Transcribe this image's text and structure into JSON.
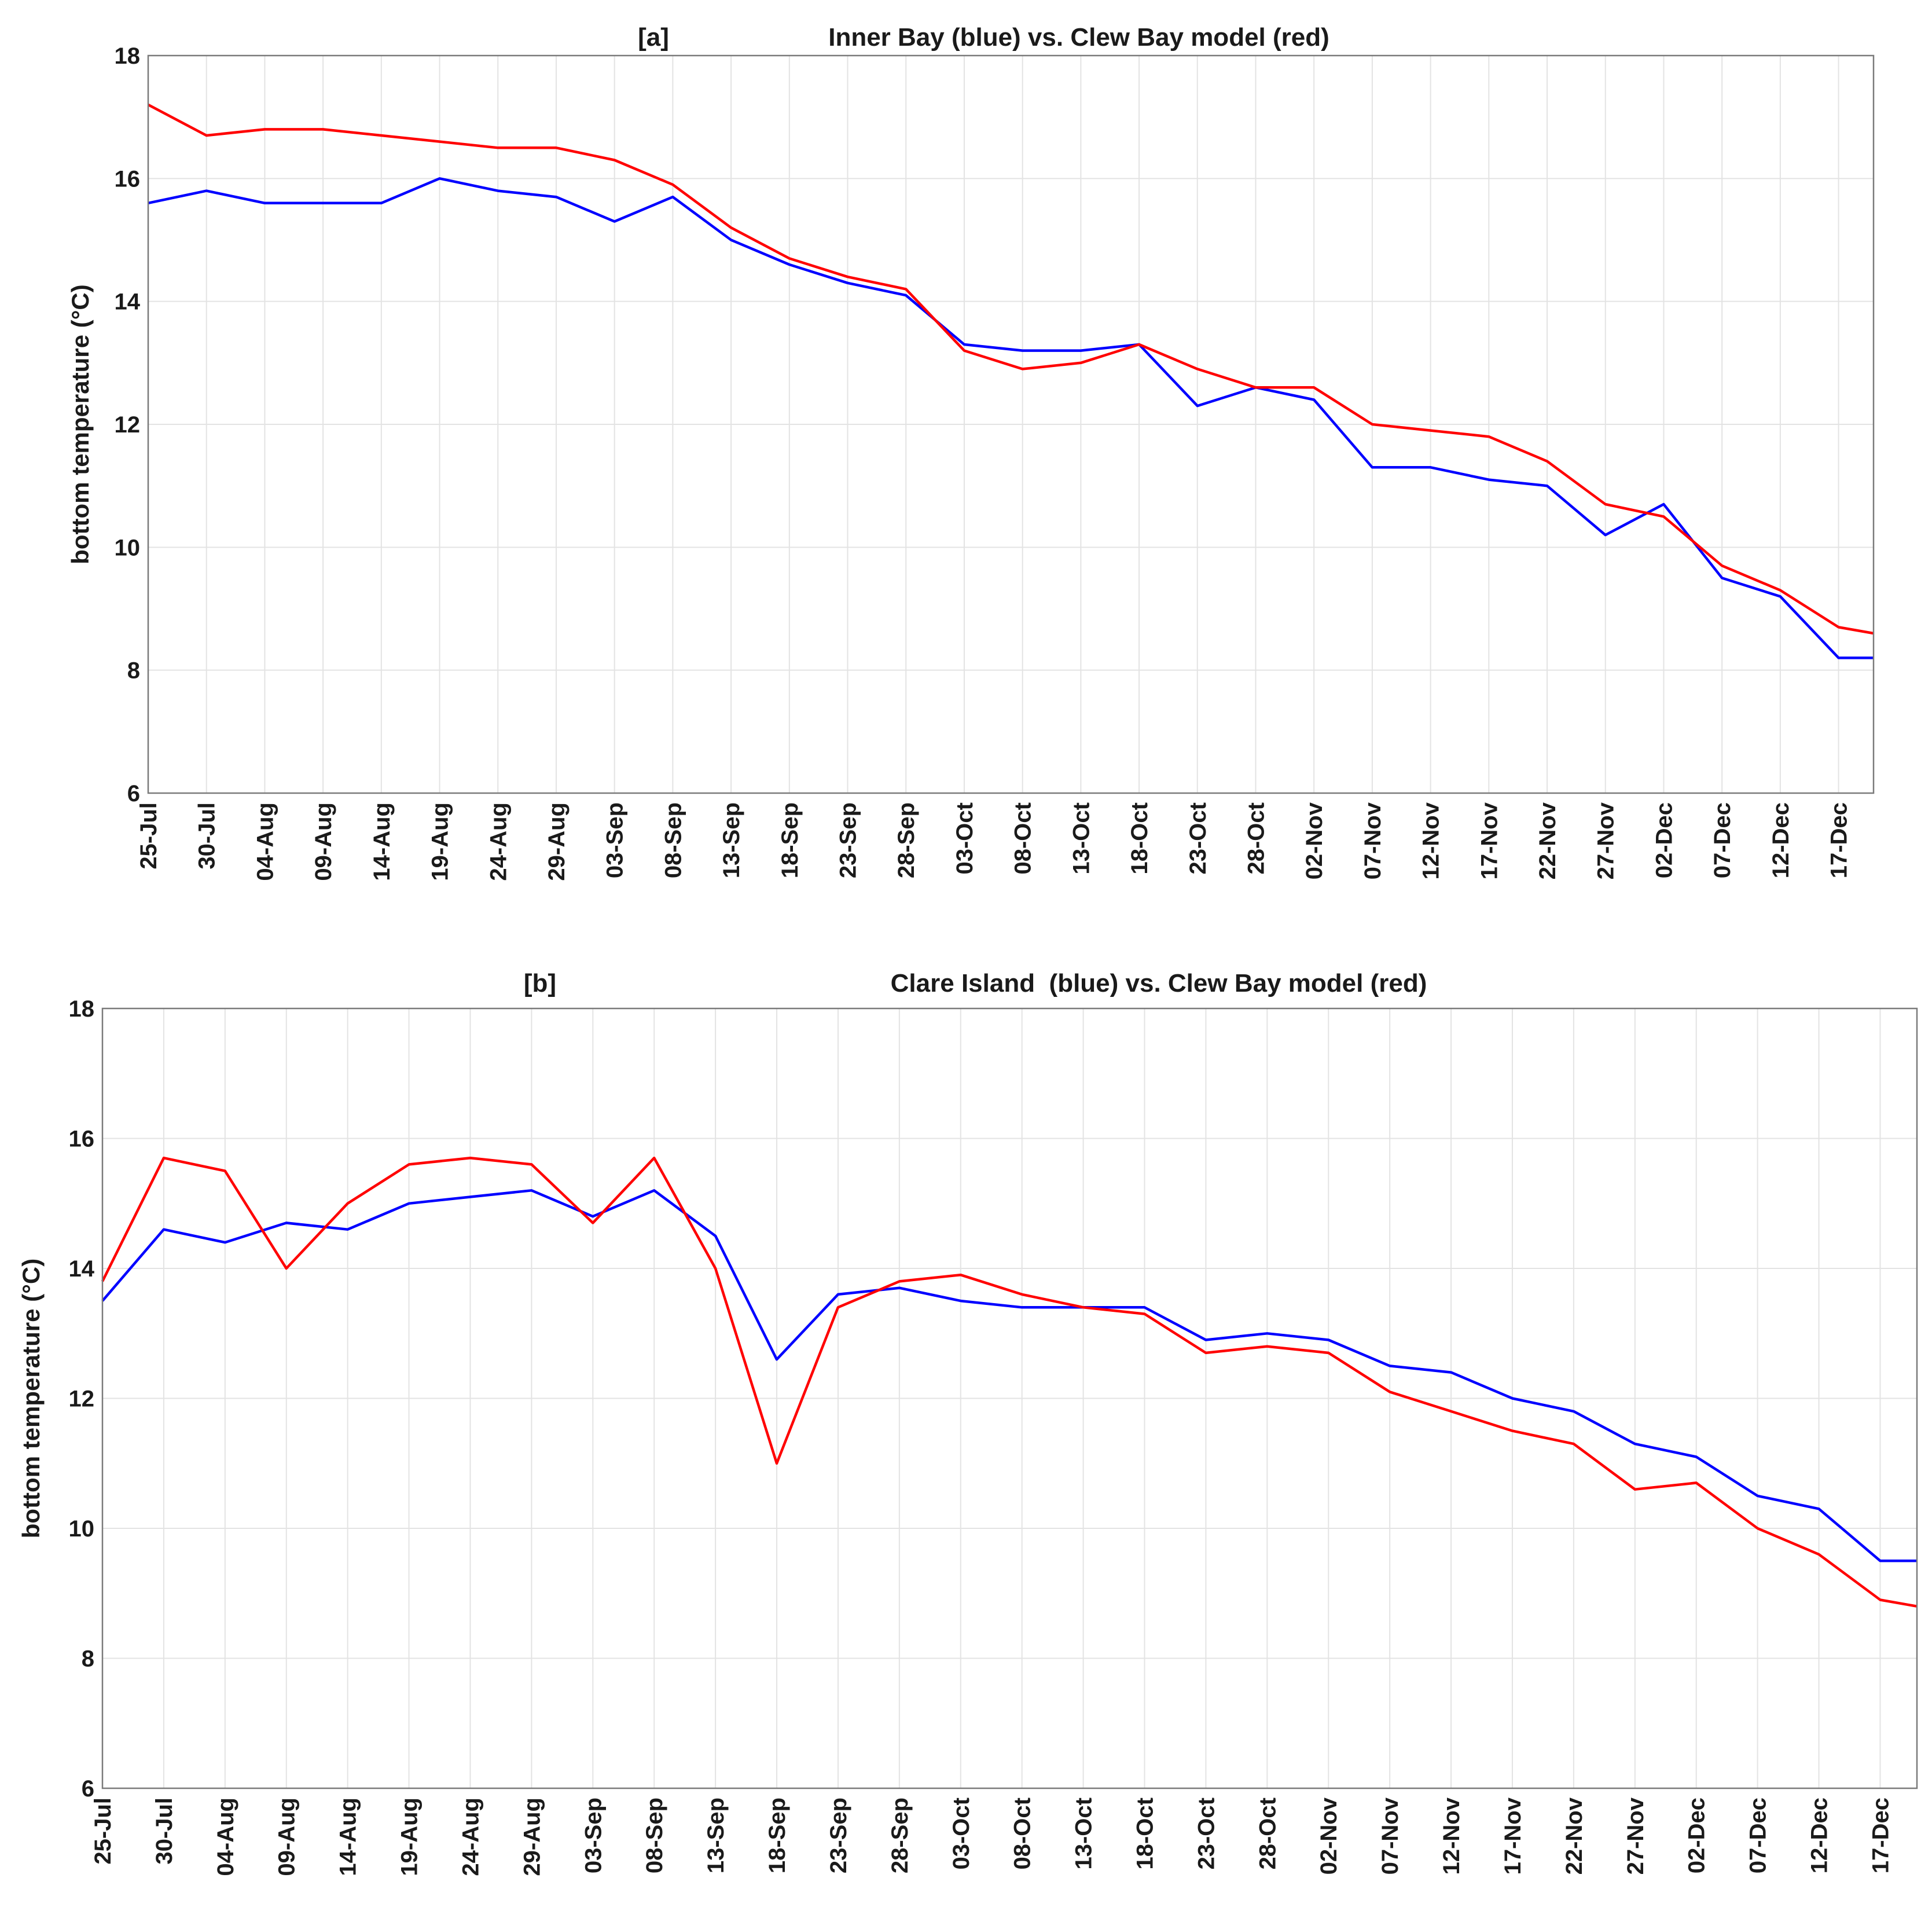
{
  "chart_data": [
    {
      "type": "line",
      "panel_label": "[a]",
      "title": "Inner Bay (blue) vs. Clew Bay model (red)",
      "y_label": "bottom temperature (°C)",
      "x": [
        "25-Jul",
        "30-Jul",
        "04-Aug",
        "09-Aug",
        "14-Aug",
        "19-Aug",
        "24-Aug",
        "29-Aug",
        "03-Sep",
        "08-Sep",
        "13-Sep",
        "18-Sep",
        "23-Sep",
        "28-Sep",
        "03-Oct",
        "08-Oct",
        "13-Oct",
        "18-Oct",
        "23-Oct",
        "28-Oct",
        "02-Nov",
        "07-Nov",
        "12-Nov",
        "17-Nov",
        "22-Nov",
        "27-Nov",
        "02-Dec",
        "07-Dec",
        "12-Dec",
        "17-Dec",
        "20-Dec"
      ],
      "series": [
        {
          "color": "#0000ff",
          "values": [
            15.6,
            15.8,
            15.6,
            15.6,
            15.6,
            16.0,
            15.8,
            15.7,
            15.3,
            15.7,
            15.0,
            14.6,
            14.3,
            14.1,
            13.3,
            13.2,
            13.2,
            13.3,
            12.3,
            12.6,
            12.4,
            11.3,
            11.3,
            11.1,
            11.0,
            10.2,
            10.7,
            9.5,
            9.2,
            8.2,
            8.2
          ]
        },
        {
          "color": "#ff0000",
          "values": [
            17.2,
            16.7,
            16.8,
            16.8,
            16.7,
            16.6,
            16.5,
            16.5,
            16.3,
            15.9,
            15.2,
            14.7,
            14.4,
            14.2,
            13.2,
            12.9,
            13.0,
            13.3,
            12.9,
            12.6,
            12.6,
            12.0,
            11.9,
            11.8,
            11.4,
            10.7,
            10.5,
            9.7,
            9.3,
            8.7,
            8.6
          ]
        }
      ],
      "xlim": [
        "25-Jul",
        "20-Dec"
      ],
      "xticks": [
        "25-Jul",
        "30-Jul",
        "04-Aug",
        "09-Aug",
        "14-Aug",
        "19-Aug",
        "24-Aug",
        "29-Aug",
        "03-Sep",
        "08-Sep",
        "13-Sep",
        "18-Sep",
        "23-Sep",
        "28-Sep",
        "03-Oct",
        "08-Oct",
        "13-Oct",
        "18-Oct",
        "23-Oct",
        "28-Oct",
        "02-Nov",
        "07-Nov",
        "12-Nov",
        "17-Nov",
        "22-Nov",
        "27-Nov",
        "02-Dec",
        "07-Dec",
        "12-Dec",
        "17-Dec"
      ],
      "ylim": [
        6,
        18
      ],
      "yticks": [
        6,
        8,
        10,
        12,
        14,
        16,
        18
      ],
      "grid": true
    },
    {
      "type": "line",
      "panel_label": "[b]",
      "title": "Clare Island  (blue) vs. Clew Bay model (red)",
      "y_label": "bottom temperature (°C)",
      "x": [
        "25-Jul",
        "30-Jul",
        "04-Aug",
        "09-Aug",
        "14-Aug",
        "19-Aug",
        "24-Aug",
        "29-Aug",
        "03-Sep",
        "08-Sep",
        "13-Sep",
        "18-Sep",
        "23-Sep",
        "28-Sep",
        "03-Oct",
        "08-Oct",
        "13-Oct",
        "18-Oct",
        "23-Oct",
        "28-Oct",
        "02-Nov",
        "07-Nov",
        "12-Nov",
        "17-Nov",
        "22-Nov",
        "27-Nov",
        "02-Dec",
        "07-Dec",
        "12-Dec",
        "17-Dec",
        "20-Dec"
      ],
      "series": [
        {
          "color": "#0000ff",
          "values": [
            13.5,
            14.6,
            14.4,
            14.7,
            14.6,
            15.0,
            15.1,
            15.2,
            14.8,
            15.2,
            14.5,
            12.6,
            13.6,
            13.7,
            13.5,
            13.4,
            13.4,
            13.4,
            12.9,
            13.0,
            12.9,
            12.5,
            12.4,
            12.0,
            11.8,
            11.3,
            11.1,
            10.5,
            10.3,
            9.5,
            9.5
          ]
        },
        {
          "color": "#ff0000",
          "values": [
            13.8,
            15.7,
            15.5,
            14.0,
            15.0,
            15.6,
            15.7,
            15.6,
            14.7,
            15.7,
            14.0,
            11.0,
            13.4,
            13.8,
            13.9,
            13.6,
            13.4,
            13.3,
            12.7,
            12.8,
            12.7,
            12.1,
            11.8,
            11.5,
            11.3,
            10.6,
            10.7,
            10.0,
            9.6,
            8.9,
            8.8
          ]
        }
      ],
      "xlim": [
        "25-Jul",
        "20-Dec"
      ],
      "xticks": [
        "25-Jul",
        "30-Jul",
        "04-Aug",
        "09-Aug",
        "14-Aug",
        "19-Aug",
        "24-Aug",
        "29-Aug",
        "03-Sep",
        "08-Sep",
        "13-Sep",
        "18-Sep",
        "23-Sep",
        "28-Sep",
        "03-Oct",
        "08-Oct",
        "13-Oct",
        "18-Oct",
        "23-Oct",
        "28-Oct",
        "02-Nov",
        "07-Nov",
        "12-Nov",
        "17-Nov",
        "22-Nov",
        "27-Nov",
        "02-Dec",
        "07-Dec",
        "12-Dec",
        "17-Dec"
      ],
      "ylim": [
        6,
        18
      ],
      "yticks": [
        6,
        8,
        10,
        12,
        14,
        16,
        18
      ],
      "grid": true
    }
  ]
}
